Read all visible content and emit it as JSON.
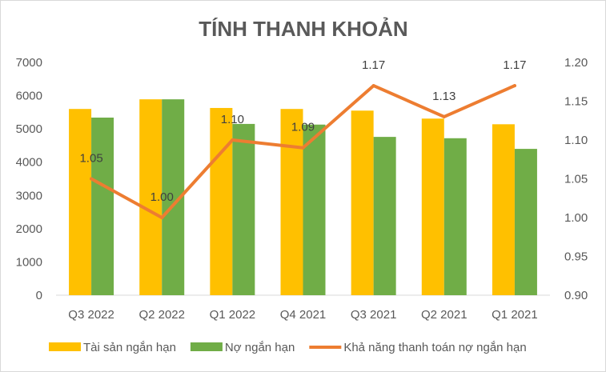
{
  "chart_data": {
    "type": "bar",
    "title": "TÍNH THANH KHOẢN",
    "categories": [
      "Q3 2022",
      "Q2 2022",
      "Q1 2022",
      "Q4 2021",
      "Q3 2021",
      "Q2 2021",
      "Q1 2021"
    ],
    "series": [
      {
        "name": "Tài sản ngắn hạn",
        "type": "bar",
        "axis": "left",
        "color": "#ffc000",
        "values": [
          5600,
          5890,
          5630,
          5600,
          5550,
          5310,
          5140
        ]
      },
      {
        "name": "Nợ ngắn hạn",
        "type": "bar",
        "axis": "left",
        "color": "#70ad47",
        "values": [
          5340,
          5890,
          5150,
          5130,
          4760,
          4720,
          4400
        ]
      },
      {
        "name": "Khả năng thanh toán nợ ngắn hạn",
        "type": "line",
        "axis": "right",
        "color": "#ed7d31",
        "values": [
          1.05,
          1.0,
          1.1,
          1.09,
          1.17,
          1.13,
          1.17
        ],
        "labels": [
          "1.05",
          "1.00",
          "1.10",
          "1.09",
          "1.17",
          "1.13",
          "1.17"
        ]
      }
    ],
    "y_left": {
      "min": 0,
      "max": 7000,
      "ticks": [
        "0",
        "1000",
        "2000",
        "3000",
        "4000",
        "5000",
        "6000",
        "7000"
      ]
    },
    "y_right": {
      "min": 0.9,
      "max": 1.2,
      "ticks": [
        "0.90",
        "0.95",
        "1.00",
        "1.05",
        "1.10",
        "1.15",
        "1.20"
      ]
    },
    "grid": false,
    "legend": "bottom"
  }
}
